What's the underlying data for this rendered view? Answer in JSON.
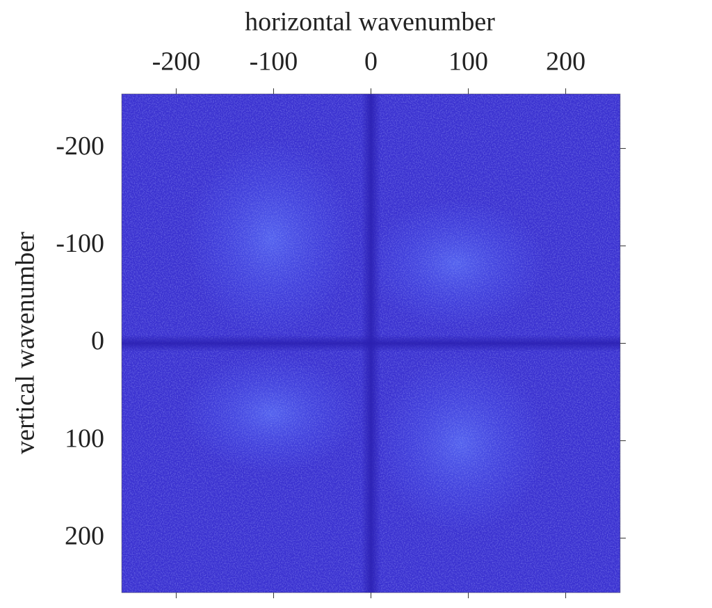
{
  "chart_data": {
    "type": "heatmap",
    "xlabel": "horizontal wavenumber",
    "ylabel": "vertical wavenumber",
    "xlim": [
      -256,
      256
    ],
    "ylim": [
      -256,
      256
    ],
    "xticks": [
      -200,
      -100,
      0,
      100,
      200
    ],
    "yticks": [
      -200,
      -100,
      0,
      100,
      200
    ],
    "y_inverted": true,
    "x_axis_position": "top",
    "color": "#3a31d0"
  }
}
